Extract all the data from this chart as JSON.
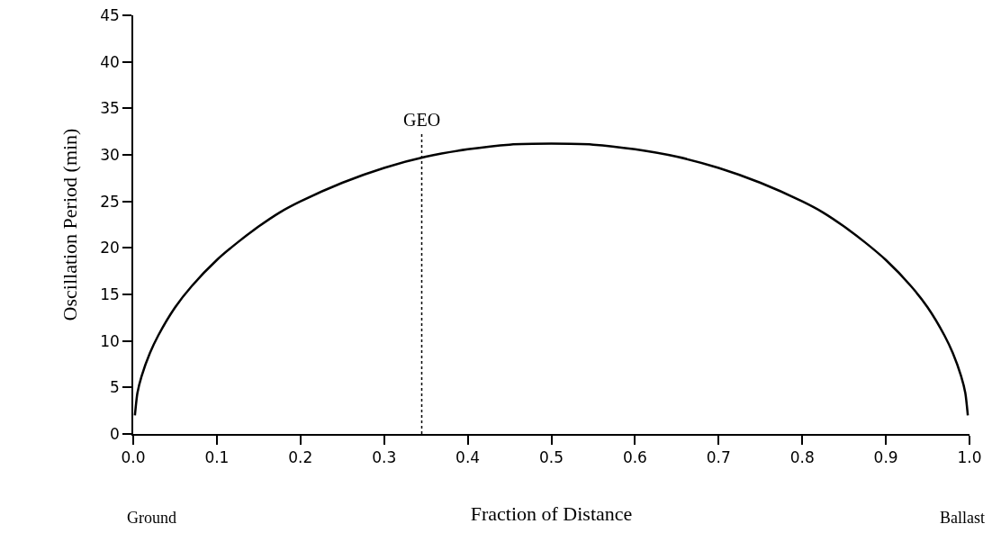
{
  "chart_data": {
    "type": "line",
    "xlabel": "Fraction of Distance",
    "ylabel": "Oscillation Period (min)",
    "xlim": [
      0,
      1
    ],
    "xticks": [
      {
        "value": 0,
        "label": "0.0"
      },
      0.1,
      0.2,
      0.3,
      0.4,
      0.5,
      0.6,
      0.7,
      0.8,
      0.9,
      {
        "value": 1,
        "label": "1.0"
      }
    ],
    "ylim": [
      0,
      45
    ],
    "yticks": [
      0,
      5,
      10,
      15,
      20,
      25,
      30,
      35,
      40,
      45
    ],
    "grid": false,
    "marker": "none",
    "line_style": "solid",
    "series": [
      {
        "color": "#000000",
        "x": [
          0.002,
          0.005,
          0.01,
          0.02,
          0.03,
          0.05,
          0.07,
          0.1,
          0.125,
          0.15,
          0.175,
          0.2,
          0.25,
          0.3,
          0.35,
          0.4,
          0.45,
          0.5,
          0.55,
          0.6,
          0.65,
          0.7,
          0.75,
          0.8,
          0.825,
          0.85,
          0.875,
          0.9,
          0.93,
          0.95,
          0.97,
          0.98,
          0.99,
          0.995,
          0.998
        ],
        "values": [
          2.0,
          4.4,
          6.2,
          8.7,
          10.6,
          13.6,
          15.9,
          18.7,
          20.6,
          22.3,
          23.8,
          25.0,
          27.0,
          28.6,
          29.8,
          30.6,
          31.1,
          31.2,
          31.1,
          30.6,
          29.8,
          28.6,
          27.0,
          25.0,
          23.8,
          22.3,
          20.6,
          18.7,
          15.9,
          13.6,
          10.6,
          8.7,
          6.2,
          4.4,
          2.0
        ]
      },
      {
        "color": "#000000",
        "type": "line",
        "line_style": "dotted",
        "x": [
          0.345,
          0.345
        ],
        "values": [
          0,
          32.5
        ]
      }
    ],
    "annotations": [
      {
        "text": "GEO",
        "x": 0.345,
        "y": 32.5
      },
      "Ground",
      "Ballast"
    ]
  }
}
